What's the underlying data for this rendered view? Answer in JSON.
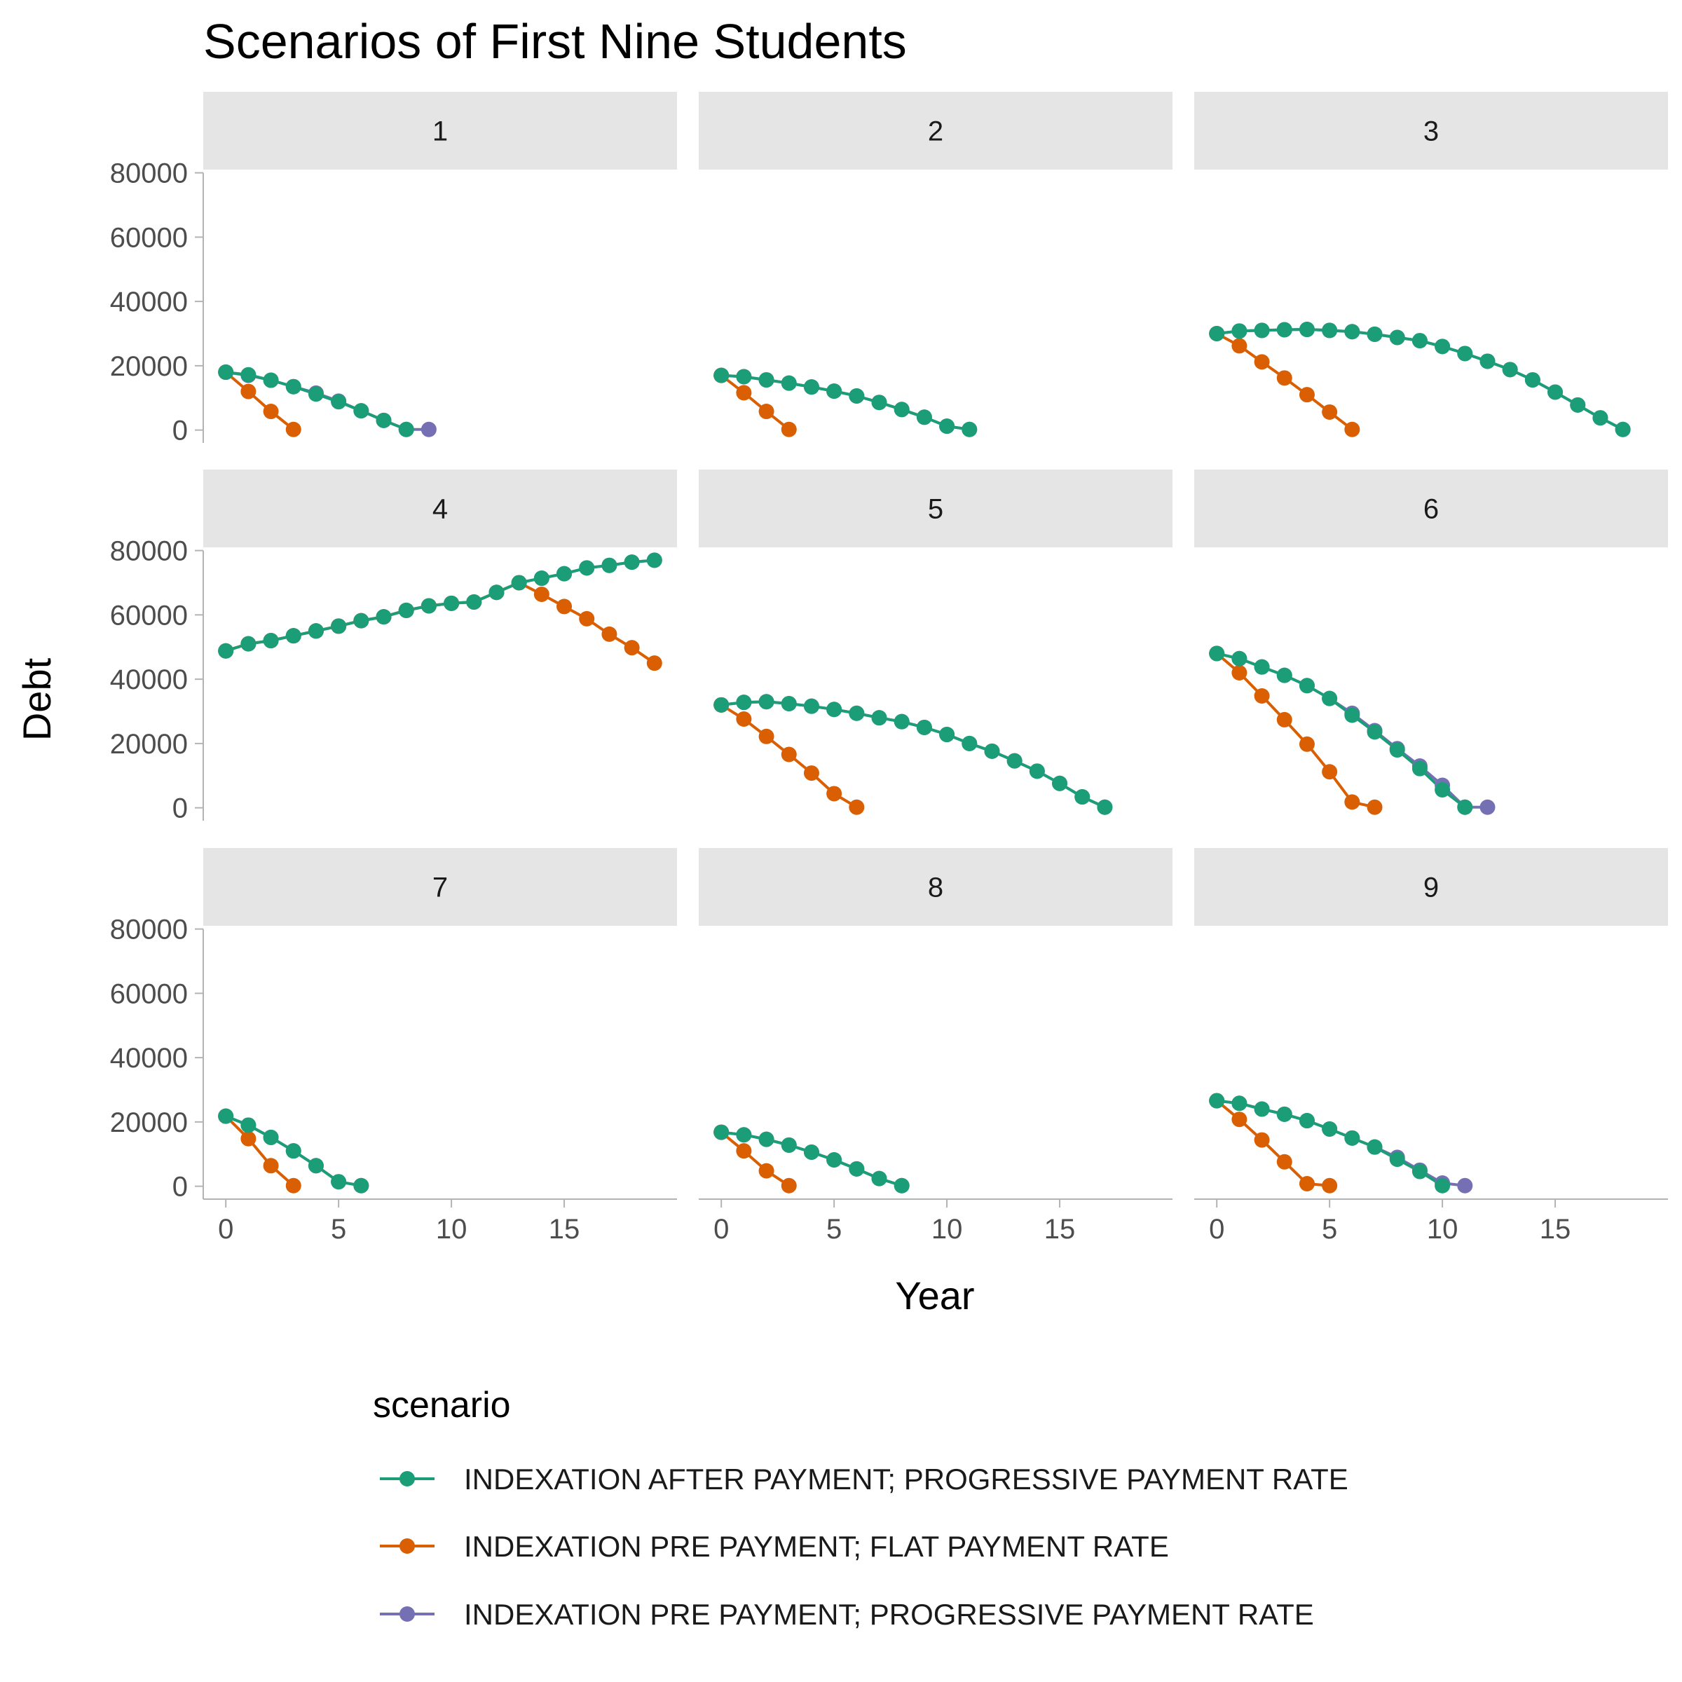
{
  "chart_data": {
    "type": "line",
    "title": "Scenarios of First Nine Students",
    "xlabel": "Year",
    "ylabel": "Debt",
    "xlim": [
      -1,
      20
    ],
    "ylim": [
      -4000,
      81000
    ],
    "x_ticks": [
      0,
      5,
      10,
      15
    ],
    "y_ticks": [
      0,
      20000,
      40000,
      60000,
      80000
    ],
    "legend": {
      "title": "scenario",
      "placement": "bottom",
      "entries": [
        {
          "key": "after_prog",
          "label": "INDEXATION AFTER PAYMENT; PROGRESSIVE PAYMENT RATE",
          "color": "#1B9E77"
        },
        {
          "key": "pre_flat",
          "label": "INDEXATION PRE PAYMENT; FLAT PAYMENT RATE",
          "color": "#D95F02"
        },
        {
          "key": "pre_prog",
          "label": "INDEXATION PRE PAYMENT; PROGRESSIVE PAYMENT RATE",
          "color": "#7570B3"
        }
      ]
    },
    "facets": [
      {
        "label": "1",
        "pre_prog": [
          18000,
          17000,
          15500,
          13500,
          11500,
          9000,
          6000,
          3000,
          200,
          200
        ],
        "after_prog": [
          18000,
          17200,
          15500,
          13500,
          11200,
          8800,
          6000,
          3000,
          200
        ],
        "pre_flat": [
          18000,
          12000,
          5800,
          200
        ]
      },
      {
        "label": "2",
        "pre_prog": [
          17000,
          16600,
          15600,
          14600,
          13400,
          12100,
          10600,
          8600,
          6400,
          4000,
          1200,
          200
        ],
        "after_prog": [
          17000,
          16600,
          15600,
          14600,
          13400,
          12100,
          10600,
          8600,
          6400,
          4000,
          1200,
          200
        ],
        "pre_flat": [
          17000,
          11600,
          5800,
          200
        ]
      },
      {
        "label": "3",
        "pre_prog": [
          30000,
          30800,
          31000,
          31200,
          31300,
          31000,
          30600,
          29800,
          28800,
          27800,
          26000,
          23800,
          21400,
          18800,
          15600,
          11800,
          7800,
          3800,
          200
        ],
        "after_prog": [
          30000,
          30800,
          31000,
          31200,
          31300,
          31000,
          30600,
          29800,
          28800,
          27800,
          26000,
          23800,
          21400,
          18800,
          15600,
          11800,
          7800,
          3800,
          200
        ],
        "pre_flat": [
          30000,
          26200,
          21200,
          16200,
          11000,
          5600,
          200
        ]
      },
      {
        "label": "4",
        "pre_prog": [
          48800,
          51000,
          52000,
          53500,
          55000,
          56500,
          58200,
          59400,
          61400,
          62800,
          63600,
          64000,
          67000,
          70000,
          71400,
          72800,
          74600,
          75400,
          76400,
          77000
        ],
        "after_prog": [
          48800,
          51000,
          52000,
          53500,
          55000,
          56500,
          58200,
          59400,
          61400,
          62800,
          63600,
          64000,
          67000,
          70000,
          71400,
          72800,
          74600,
          75400,
          76400,
          77000
        ],
        "pre_flat": [
          48800,
          51000,
          52000,
          53500,
          55000,
          56500,
          58200,
          59400,
          61400,
          62800,
          63600,
          64000,
          67000,
          70000,
          66400,
          62600,
          58800,
          54000,
          49800,
          45000
        ]
      },
      {
        "label": "5",
        "pre_prog": [
          32000,
          32800,
          33000,
          32400,
          31600,
          30600,
          29400,
          28000,
          26800,
          25000,
          22800,
          20000,
          17600,
          14600,
          11400,
          7600,
          3400,
          200
        ],
        "after_prog": [
          32000,
          32800,
          33000,
          32400,
          31600,
          30600,
          29400,
          28000,
          26800,
          25000,
          22800,
          20000,
          17600,
          14600,
          11400,
          7600,
          3400,
          200
        ],
        "pre_flat": [
          32000,
          27600,
          22200,
          16600,
          10800,
          4400,
          200
        ]
      },
      {
        "label": "6",
        "pre_prog": [
          48000,
          46400,
          43800,
          41200,
          38000,
          34000,
          29400,
          24000,
          18400,
          13000,
          7000,
          200,
          200
        ],
        "after_prog": [
          48000,
          46400,
          43800,
          41200,
          38000,
          34000,
          28800,
          23600,
          18000,
          12200,
          5600,
          200
        ],
        "pre_flat": [
          48000,
          42000,
          34800,
          27400,
          19800,
          11200,
          1800,
          200
        ]
      },
      {
        "label": "7",
        "pre_prog": [
          21800,
          19000,
          15200,
          11000,
          6400,
          1400,
          200
        ],
        "after_prog": [
          21800,
          19000,
          15200,
          11000,
          6400,
          1400,
          200
        ],
        "pre_flat": [
          21800,
          14800,
          6400,
          200
        ]
      },
      {
        "label": "8",
        "pre_prog": [
          16800,
          16000,
          14600,
          12800,
          10600,
          8200,
          5400,
          2400,
          200
        ],
        "after_prog": [
          16800,
          16000,
          14600,
          12800,
          10600,
          8200,
          5400,
          2400,
          200
        ],
        "pre_flat": [
          16800,
          11000,
          4800,
          200
        ]
      },
      {
        "label": "9",
        "pre_prog": [
          26600,
          25800,
          24000,
          22400,
          20400,
          17800,
          15000,
          12200,
          9000,
          5000,
          1000,
          200
        ],
        "after_prog": [
          26600,
          25800,
          24000,
          22400,
          20400,
          17800,
          15000,
          12200,
          8400,
          4600,
          200
        ],
        "pre_flat": [
          26600,
          20800,
          14400,
          7600,
          800,
          200
        ]
      }
    ]
  }
}
